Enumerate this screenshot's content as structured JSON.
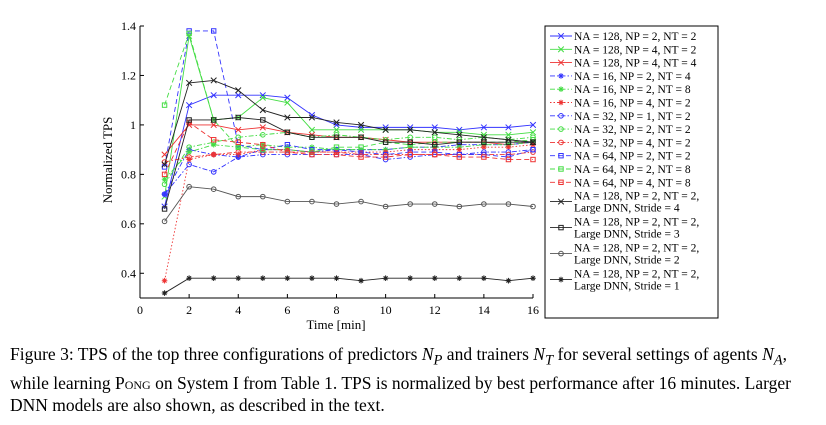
{
  "chart_data": {
    "type": "line",
    "xlabel": "Time [min]",
    "ylabel": "Normalized TPS",
    "xlim": [
      0,
      16
    ],
    "ylim": [
      0.3,
      1.4
    ],
    "xticks": [
      "0",
      "2",
      "4",
      "6",
      "8",
      "10",
      "12",
      "14",
      "16"
    ],
    "yticks": [
      "0.4",
      "0.6",
      "0.8",
      "1",
      "1.2",
      "1.4"
    ],
    "x": [
      1,
      2,
      3,
      4,
      5,
      6,
      7,
      8,
      9,
      10,
      11,
      12,
      13,
      14,
      15,
      16
    ],
    "grid": false,
    "legend_position": "right-outside",
    "series": [
      {
        "name": "N_A = 128, N_P = 2, N_T = 2",
        "legend_lines": [
          "NA = 128, NP = 2, NT = 2"
        ],
        "color": "#3333ff",
        "marker": "x",
        "dash": "solid",
        "values": [
          0.67,
          1.08,
          1.12,
          1.12,
          1.12,
          1.11,
          1.04,
          1.0,
          0.99,
          0.99,
          0.99,
          0.99,
          0.98,
          0.99,
          0.99,
          1.0
        ]
      },
      {
        "name": "N_A = 128, N_P = 4, N_T = 2",
        "legend_lines": [
          "NA = 128, NP = 4, NT = 2"
        ],
        "color": "#44dd44",
        "marker": "x",
        "dash": "solid",
        "values": [
          0.71,
          1.36,
          1.02,
          1.03,
          1.11,
          1.09,
          0.98,
          0.98,
          0.98,
          0.98,
          0.98,
          0.97,
          0.97,
          0.96,
          0.96,
          0.97
        ]
      },
      {
        "name": "N_A = 128, N_P = 4, N_T = 4",
        "legend_lines": [
          "NA = 128, NP = 4, NT = 4"
        ],
        "color": "#ee3333",
        "marker": "x",
        "dash": "solid",
        "values": [
          0.88,
          1.0,
          1.0,
          0.98,
          0.99,
          0.97,
          0.96,
          0.95,
          0.95,
          0.94,
          0.93,
          0.93,
          0.93,
          0.93,
          0.92,
          0.93
        ]
      },
      {
        "name": "N_A = 16, N_P = 2, N_T = 4",
        "legend_lines": [
          "NA = 16, NP = 2, NT = 4"
        ],
        "color": "#3333ff",
        "marker": "star",
        "dash": "dashdot",
        "values": [
          0.72,
          0.9,
          0.88,
          0.87,
          0.9,
          0.9,
          0.89,
          0.9,
          0.9,
          0.9,
          0.91,
          0.91,
          0.92,
          0.92,
          0.92,
          0.93
        ]
      },
      {
        "name": "N_A = 16, N_P = 2, N_T = 8",
        "legend_lines": [
          "NA = 16, NP = 2, NT = 8"
        ],
        "color": "#44dd44",
        "marker": "star",
        "dash": "dashdot",
        "values": [
          0.78,
          0.89,
          0.92,
          0.91,
          0.92,
          0.91,
          0.91,
          0.9,
          0.9,
          0.9,
          0.91,
          0.91,
          0.91,
          0.92,
          0.92,
          0.93
        ]
      },
      {
        "name": "N_A = 16, N_P = 4, N_T = 2",
        "legend_lines": [
          "NA = 16, NP = 4, NT = 2"
        ],
        "color": "#ee3333",
        "marker": "star",
        "dash": "dotted",
        "values": [
          0.37,
          0.86,
          0.88,
          0.88,
          0.9,
          0.9,
          0.89,
          0.89,
          0.89,
          0.89,
          0.9,
          0.9,
          0.9,
          0.91,
          0.91,
          0.92
        ]
      },
      {
        "name": "N_A = 32, N_P = 1, N_T = 2",
        "legend_lines": [
          "NA = 32, NP = 1, NT = 2"
        ],
        "color": "#3333ff",
        "marker": "circle",
        "dash": "dashdot",
        "values": [
          0.72,
          0.84,
          0.81,
          0.87,
          0.88,
          0.88,
          0.88,
          0.88,
          0.88,
          0.86,
          0.87,
          0.88,
          0.88,
          0.89,
          0.89,
          0.9
        ]
      },
      {
        "name": "N_A = 32, N_P = 2, N_T = 2",
        "legend_lines": [
          "NA = 32, NP = 2, NT = 2"
        ],
        "color": "#44dd44",
        "marker": "circle",
        "dash": "dashdot",
        "values": [
          0.76,
          0.91,
          0.93,
          0.95,
          0.96,
          0.97,
          0.95,
          0.96,
          0.95,
          0.94,
          0.95,
          0.95,
          0.94,
          0.95,
          0.94,
          0.95
        ]
      },
      {
        "name": "N_A = 32, N_P = 4, N_T = 2",
        "legend_lines": [
          "NA = 32, NP = 4, NT = 2"
        ],
        "color": "#ee3333",
        "marker": "circle",
        "dash": "dashdot",
        "values": [
          0.85,
          0.87,
          0.88,
          0.89,
          0.89,
          0.89,
          0.89,
          0.89,
          0.88,
          0.88,
          0.88,
          0.88,
          0.88,
          0.88,
          0.88,
          0.89
        ]
      },
      {
        "name": "N_A = 64, N_P = 2, N_T = 2",
        "legend_lines": [
          "NA = 64, NP = 2, NT = 2"
        ],
        "color": "#3333ff",
        "marker": "square",
        "dash": "dashed",
        "values": [
          0.83,
          1.38,
          1.38,
          0.92,
          0.9,
          0.92,
          0.9,
          0.9,
          0.89,
          0.88,
          0.89,
          0.89,
          0.88,
          0.88,
          0.87,
          0.9
        ]
      },
      {
        "name": "N_A = 64, N_P = 2, N_T = 8",
        "legend_lines": [
          "NA = 64, NP = 2, NT = 8"
        ],
        "color": "#44dd44",
        "marker": "square",
        "dash": "dashed",
        "values": [
          1.08,
          1.37,
          1.02,
          0.91,
          0.9,
          0.9,
          0.89,
          0.91,
          0.91,
          0.93,
          0.92,
          0.93,
          0.93,
          0.93,
          0.93,
          0.94
        ]
      },
      {
        "name": "N_A = 64, N_P = 4, N_T = 8",
        "legend_lines": [
          "NA = 64, NP = 4, NT = 8"
        ],
        "color": "#ee3333",
        "marker": "square",
        "dash": "dashed",
        "values": [
          0.8,
          1.01,
          0.94,
          0.93,
          0.92,
          0.89,
          0.88,
          0.88,
          0.87,
          0.87,
          0.88,
          0.88,
          0.87,
          0.87,
          0.86,
          0.86
        ]
      },
      {
        "name": "N_A = 128, N_P = 2, N_T = 2, Large DNN, Stride = 4",
        "legend_lines": [
          "NA = 128, NP = 2, NT = 2,",
          "Large DNN, Stride = 4"
        ],
        "color": "#222222",
        "marker": "x",
        "dash": "solid",
        "values": [
          0.84,
          1.17,
          1.18,
          1.14,
          1.06,
          1.03,
          1.03,
          1.01,
          1.0,
          0.98,
          0.98,
          0.97,
          0.96,
          0.95,
          0.94,
          0.93
        ]
      },
      {
        "name": "N_A = 128, N_P = 2, N_T = 2, Large DNN, Stride = 3",
        "legend_lines": [
          "NA = 128, NP = 2, NT = 2,",
          "Large DNN, Stride = 3"
        ],
        "color": "#222222",
        "marker": "square",
        "dash": "solid",
        "values": [
          0.66,
          1.02,
          1.02,
          1.03,
          1.02,
          0.97,
          0.95,
          0.95,
          0.95,
          0.93,
          0.93,
          0.92,
          0.93,
          0.93,
          0.93,
          0.93
        ]
      },
      {
        "name": "N_A = 128, N_P = 2, N_T = 2, Large DNN, Stride = 2",
        "legend_lines": [
          "NA = 128, NP = 2, NT = 2,",
          "Large DNN, Stride = 2"
        ],
        "color": "#555555",
        "marker": "circle",
        "dash": "solid",
        "values": [
          0.61,
          0.75,
          0.74,
          0.71,
          0.71,
          0.69,
          0.69,
          0.68,
          0.69,
          0.67,
          0.68,
          0.68,
          0.67,
          0.68,
          0.68,
          0.67
        ]
      },
      {
        "name": "N_A = 128, N_P = 2, N_T = 2, Large DNN, Stride = 1",
        "legend_lines": [
          "NA = 128, NP = 2, NT = 2,",
          "Large DNN, Stride = 1"
        ],
        "color": "#222222",
        "marker": "star",
        "dash": "solid",
        "values": [
          0.32,
          0.38,
          0.38,
          0.38,
          0.38,
          0.38,
          0.38,
          0.38,
          0.37,
          0.38,
          0.38,
          0.38,
          0.38,
          0.38,
          0.37,
          0.38
        ]
      }
    ]
  },
  "caption": {
    "prefix": "Figure 3: TPS of the top three configurations of predictors ",
    "np": "N",
    "np_sub": "P",
    "mid1": " and trainers ",
    "nt": "N",
    "nt_sub": "T",
    "mid2": " for several settings of agents ",
    "na": "N",
    "na_sub": "A",
    "mid3": ", while learning ",
    "game": "Pong",
    "suffix": " on System I from Table 1. TPS is normalized by best performance after 16 minutes. Larger DNN models are also shown, as described in the text."
  }
}
